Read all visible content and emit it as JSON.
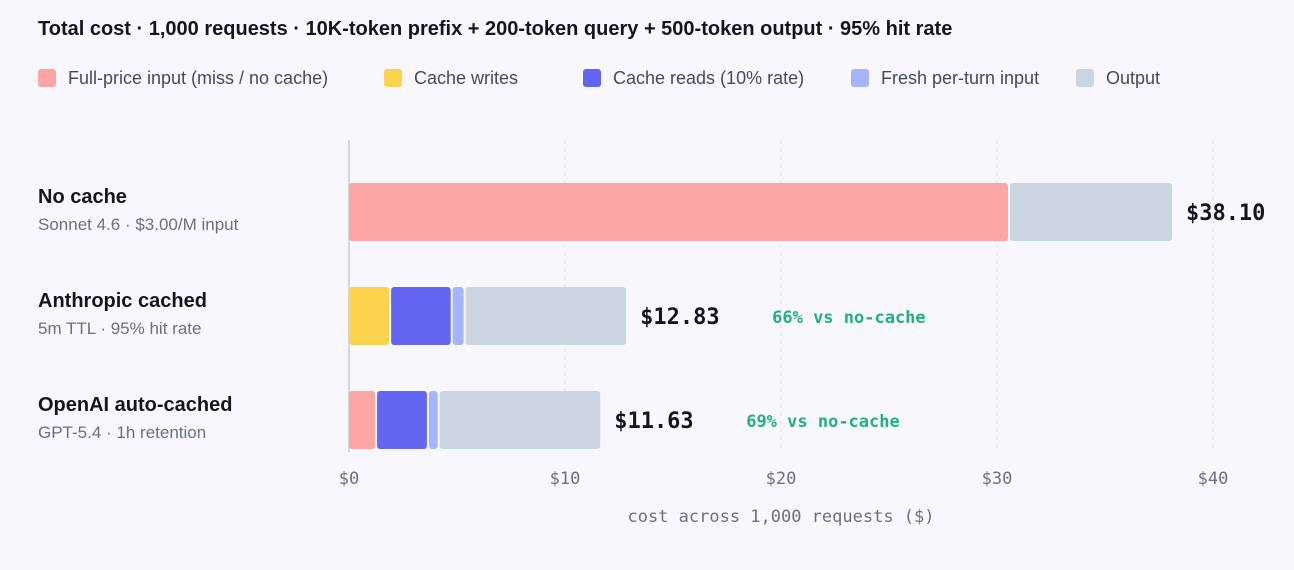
{
  "chart_data": {
    "type": "bar",
    "orientation": "horizontal",
    "stacked": true,
    "title": "Total cost · 1,000 requests · 10K-token prefix + 200-token query + 500-token output · 95% hit rate",
    "xlabel": "cost across 1,000 requests ($)",
    "xlim": [
      0,
      40
    ],
    "xticks": [
      {
        "value": 0,
        "label": "$0"
      },
      {
        "value": 10,
        "label": "$10"
      },
      {
        "value": 20,
        "label": "$20"
      },
      {
        "value": 30,
        "label": "$30"
      },
      {
        "value": 40,
        "label": "$40"
      }
    ],
    "grid": "vertical dashed",
    "legend_position": "top",
    "legend": [
      {
        "name": "Full-price input (miss / no cache)",
        "color": "#fca5a5"
      },
      {
        "name": "Cache writes",
        "color": "#fcd34d"
      },
      {
        "name": "Cache reads (10% rate)",
        "color": "#6366f1"
      },
      {
        "name": "Fresh per-turn input",
        "color": "#a5b4fc"
      },
      {
        "name": "Output",
        "color": "#cbd5e1"
      }
    ],
    "categories": [
      {
        "name": "No cache",
        "subtitle": "Sonnet 4.6 · $3.00/M input",
        "segments": [
          {
            "series": "Full-price input (miss / no cache)",
            "value": 30.6
          },
          {
            "series": "Output",
            "value": 7.5
          }
        ],
        "total_label": "$38.10",
        "saving_label": ""
      },
      {
        "name": "Anthropic cached",
        "subtitle": "5m TTL · 95% hit rate",
        "segments": [
          {
            "series": "Cache writes",
            "value": 1.95
          },
          {
            "series": "Cache reads (10% rate)",
            "value": 2.85
          },
          {
            "series": "Fresh per-turn input",
            "value": 0.6
          },
          {
            "series": "Output",
            "value": 7.43
          }
        ],
        "total_label": "$12.83",
        "saving_label": "66% vs no-cache"
      },
      {
        "name": "OpenAI auto-cached",
        "subtitle": "GPT-5.4 · 1h retention",
        "segments": [
          {
            "series": "Full-price input (miss / no cache)",
            "value": 1.3
          },
          {
            "series": "Cache reads (10% rate)",
            "value": 2.4
          },
          {
            "series": "Fresh per-turn input",
            "value": 0.5
          },
          {
            "series": "Output",
            "value": 7.43
          }
        ],
        "total_label": "$11.63",
        "saving_label": "69% vs no-cache"
      }
    ],
    "total_color": "#14151f",
    "saving_color": "#22b07d"
  }
}
